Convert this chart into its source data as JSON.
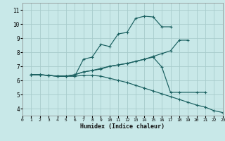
{
  "xlabel": "Humidex (Indice chaleur)",
  "xlim": [
    0,
    23
  ],
  "ylim": [
    3.5,
    11.5
  ],
  "xticks": [
    0,
    1,
    2,
    3,
    4,
    5,
    6,
    7,
    8,
    9,
    10,
    11,
    12,
    13,
    14,
    15,
    16,
    17,
    18,
    19,
    20,
    21,
    22,
    23
  ],
  "yticks": [
    4,
    5,
    6,
    7,
    8,
    9,
    10,
    11
  ],
  "bg_color": "#c8e8e8",
  "grid_color": "#a8cccc",
  "line_color": "#1a6060",
  "lines": [
    {
      "x": [
        1,
        2,
        3,
        4,
        5,
        6,
        7,
        8,
        9,
        10,
        11,
        12,
        13,
        14,
        15,
        16,
        17
      ],
      "y": [
        6.4,
        6.4,
        6.35,
        6.3,
        6.3,
        6.3,
        7.5,
        7.65,
        8.55,
        8.4,
        9.3,
        9.4,
        10.4,
        10.55,
        10.5,
        9.8,
        9.8
      ]
    },
    {
      "x": [
        1,
        2,
        3,
        4,
        5,
        6,
        7,
        8,
        9,
        10,
        11,
        12,
        13,
        14,
        15,
        16,
        17,
        18,
        19
      ],
      "y": [
        6.4,
        6.4,
        6.35,
        6.3,
        6.3,
        6.4,
        6.6,
        6.7,
        6.85,
        7.0,
        7.1,
        7.2,
        7.35,
        7.5,
        7.7,
        7.9,
        8.1,
        8.85,
        8.85
      ]
    },
    {
      "x": [
        1,
        2,
        3,
        4,
        5,
        6,
        7,
        8,
        9,
        10,
        11,
        12,
        13,
        14,
        15,
        16,
        17,
        18,
        20,
        21
      ],
      "y": [
        6.4,
        6.4,
        6.35,
        6.3,
        6.3,
        6.4,
        6.6,
        6.7,
        6.8,
        7.0,
        7.1,
        7.2,
        7.35,
        7.5,
        7.65,
        6.95,
        5.15,
        5.15,
        5.15,
        5.15
      ]
    },
    {
      "x": [
        1,
        2,
        3,
        4,
        5,
        6,
        7,
        8,
        9,
        10,
        11,
        12,
        13,
        14,
        15,
        16,
        17,
        18,
        19,
        20,
        21,
        22,
        23
      ],
      "y": [
        6.4,
        6.4,
        6.35,
        6.3,
        6.3,
        6.3,
        6.35,
        6.35,
        6.3,
        6.15,
        6.0,
        5.85,
        5.65,
        5.45,
        5.25,
        5.05,
        4.85,
        4.65,
        4.45,
        4.25,
        4.1,
        3.85,
        3.72
      ]
    }
  ]
}
